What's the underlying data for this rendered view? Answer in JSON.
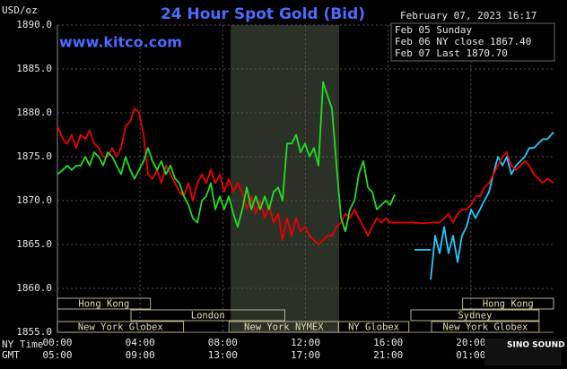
{
  "chart_data": {
    "type": "line",
    "title": "24 Hour Spot Gold (Bid)",
    "website": "www.kitco.com",
    "y_label": "USD/oz",
    "timestamp": "February 07, 2023 16:17",
    "watermark": "SINO SOUND",
    "xlim": [
      0,
      24
    ],
    "ylim": [
      1855,
      1890
    ],
    "yticks": [
      {
        "value": 1855,
        "label": "1855.0"
      },
      {
        "value": 1860,
        "label": "1860.0"
      },
      {
        "value": 1865,
        "label": "1865.0"
      },
      {
        "value": 1870,
        "label": "1870.0"
      },
      {
        "value": 1875,
        "label": "1875.0"
      },
      {
        "value": 1880,
        "label": "1880.0"
      },
      {
        "value": 1885,
        "label": "1885.0"
      },
      {
        "value": 1890,
        "label": "1890.0"
      }
    ],
    "xticks": [
      {
        "value": 0,
        "label": "00:00"
      },
      {
        "value": 4,
        "label": "04:00"
      },
      {
        "value": 8,
        "label": "08:00"
      },
      {
        "value": 12,
        "label": "12:00"
      },
      {
        "value": 16,
        "label": "16:00"
      },
      {
        "value": 20,
        "label": "20:00"
      }
    ],
    "gmt_labels": [
      "05:00",
      "09:00",
      "13:00",
      "17:00",
      "21:00",
      "01:00"
    ],
    "x_row_labels": [
      "NY Time",
      "GMT"
    ],
    "grid": true,
    "shaded_x": [
      8.38,
      13.63
    ],
    "session_rows": [
      [
        {
          "name": "Hong Kong",
          "start": 0,
          "end": 4.5
        },
        {
          "name": "Hong Kong",
          "start": 19.6,
          "end": 24
        }
      ],
      [
        {
          "name": "London",
          "start": 3.56,
          "end": 11.0
        },
        {
          "name": "Sydney",
          "start": 17.1,
          "end": 23.3
        }
      ],
      [
        {
          "name": "New York Globex",
          "start": 0,
          "end": 6.1
        },
        {
          "name": "New York NYMEX",
          "start": 8.3,
          "end": 13.6
        },
        {
          "name": "NY Globex",
          "start": 13.6,
          "end": 17.0
        },
        {
          "name": "New York Globex",
          "start": 18.1,
          "end": 23.3
        }
      ]
    ],
    "series": [
      {
        "name": "Feb 05 Sunday",
        "color": "#22ccff",
        "x": [
          17.27,
          18.06,
          18.06,
          18.06,
          18.27,
          18.49,
          18.71,
          18.92,
          19.14,
          19.36,
          19.57,
          19.79,
          20.01,
          20.23,
          20.44,
          20.66,
          20.88,
          21.09,
          21.31,
          21.53,
          21.74,
          21.96,
          22.18,
          22.4,
          22.61,
          22.83,
          23.05,
          23.26,
          23.48,
          23.7,
          24.0
        ],
        "values": [
          1864.4,
          1864.4,
          null,
          1861,
          1866,
          1864,
          1867,
          1864,
          1866,
          1863,
          1866,
          1867,
          1869,
          1868,
          1869,
          1870,
          1871,
          1873,
          1875,
          1874,
          1875,
          1873,
          1874,
          1874.5,
          1875,
          1876,
          1876,
          1876.5,
          1877,
          1877,
          1877.8
        ]
      },
      {
        "name": "Feb 06 NY close 1867.40",
        "color": "#ee0000",
        "x": [
          0,
          0.26,
          0.48,
          0.69,
          0.91,
          1.13,
          1.35,
          1.56,
          1.78,
          2.0,
          2.21,
          2.43,
          2.65,
          2.86,
          3.08,
          3.3,
          3.52,
          3.73,
          3.95,
          4.17,
          4.38,
          4.6,
          4.82,
          5.03,
          5.25,
          5.47,
          5.69,
          5.9,
          6.12,
          6.34,
          6.55,
          6.77,
          6.99,
          7.2,
          7.42,
          7.64,
          7.86,
          8.07,
          8.29,
          8.51,
          8.72,
          8.94,
          9.16,
          9.38,
          9.59,
          9.81,
          10.03,
          10.24,
          10.46,
          10.68,
          10.89,
          11.11,
          11.33,
          11.55,
          11.76,
          11.98,
          12.2,
          12.41,
          12.63,
          12.85,
          13.06,
          13.28,
          13.5,
          13.72,
          13.93,
          14.15,
          14.37,
          14.58,
          14.8,
          15.02,
          15.23,
          15.45,
          15.67,
          15.89,
          16.1,
          16.32,
          16.75,
          17.19,
          17.62,
          18.06,
          18.49,
          18.71,
          18.92,
          19.14,
          19.36,
          19.57,
          19.79,
          20.01,
          20.23,
          20.44,
          20.66,
          20.88,
          21.09,
          21.31,
          21.53,
          21.74,
          21.96,
          22.18,
          22.4,
          22.61,
          22.83,
          23.05,
          23.26,
          23.48,
          23.7,
          24.0
        ],
        "values": [
          1878.5,
          1877,
          1876.5,
          1877.5,
          1876,
          1877.5,
          1877,
          1878,
          1876.5,
          1876,
          1875,
          1875,
          1876,
          1875,
          1876,
          1878.5,
          1879,
          1880.5,
          1880,
          1877.5,
          1873,
          1872.5,
          1873.5,
          1872,
          1874,
          1873,
          1872,
          1871,
          1870.5,
          1872,
          1870,
          1872,
          1873,
          1872,
          1873.5,
          1872,
          1873,
          1871,
          1872.5,
          1871,
          1872,
          1871,
          1869,
          1870.5,
          1868.5,
          1870,
          1868,
          1869.5,
          1867.5,
          1868.5,
          1865.5,
          1868,
          1866,
          1868,
          1866.5,
          1867,
          1866,
          1865.5,
          1865,
          1865.5,
          1866,
          1866,
          1867,
          1867.5,
          1868.5,
          1868,
          1869,
          1868,
          1867,
          1866,
          1867,
          1868,
          1867.5,
          1868,
          1867.5,
          1867.5,
          1867.5,
          1867.5,
          1867.4,
          1867.5,
          1867.5,
          1868,
          1868.5,
          1867.5,
          1868.5,
          1869,
          1869,
          1869.5,
          1870.5,
          1870.5,
          1871.5,
          1872,
          1873,
          1874,
          1875,
          1875.5,
          1874,
          1873.5,
          1874,
          1874.5,
          1874,
          1873,
          1872.5,
          1872,
          1872.5,
          1872
        ]
      },
      {
        "name": "Feb 07 Last 1870.70",
        "color": "#22dd22",
        "x": [
          0,
          0.26,
          0.48,
          0.69,
          0.91,
          1.13,
          1.35,
          1.56,
          1.78,
          2.0,
          2.21,
          2.43,
          2.65,
          2.86,
          3.08,
          3.3,
          3.52,
          3.73,
          3.95,
          4.17,
          4.38,
          4.6,
          4.82,
          5.03,
          5.25,
          5.47,
          5.69,
          5.9,
          6.12,
          6.34,
          6.55,
          6.77,
          6.99,
          7.2,
          7.42,
          7.64,
          7.86,
          8.07,
          8.29,
          8.51,
          8.72,
          8.94,
          9.16,
          9.38,
          9.59,
          9.81,
          10.03,
          10.24,
          10.46,
          10.68,
          10.89,
          11.11,
          11.33,
          11.55,
          11.76,
          11.98,
          12.2,
          12.41,
          12.63,
          12.85,
          13.06,
          13.28,
          13.5,
          13.72,
          13.93,
          14.15,
          14.37,
          14.58,
          14.8,
          15.02,
          15.23,
          15.45,
          15.67,
          15.89,
          16.1,
          16.32
        ],
        "values": [
          1873,
          1873.5,
          1874,
          1873.5,
          1874,
          1874,
          1875,
          1874,
          1875.5,
          1875,
          1874,
          1875.5,
          1875,
          1874,
          1873,
          1875,
          1873.5,
          1872.5,
          1873.5,
          1874.5,
          1876,
          1874.5,
          1873.5,
          1874.5,
          1873,
          1874,
          1872.5,
          1872,
          1870.5,
          1869.5,
          1868,
          1867.5,
          1870,
          1870.5,
          1872,
          1869,
          1870.5,
          1869,
          1870.5,
          1868.5,
          1867,
          1869,
          1871.5,
          1869,
          1870.5,
          1869,
          1870.5,
          1869,
          1871,
          1871.5,
          1870,
          1876.5,
          1876.5,
          1877.5,
          1875.5,
          1876.5,
          1875,
          1876,
          1874,
          1883.5,
          1882,
          1880.5,
          1874,
          1868,
          1866.5,
          1869,
          1870,
          1873,
          1874.5,
          1871.5,
          1871,
          1869,
          1869.5,
          1870,
          1869.5,
          1870.7
        ]
      }
    ]
  }
}
